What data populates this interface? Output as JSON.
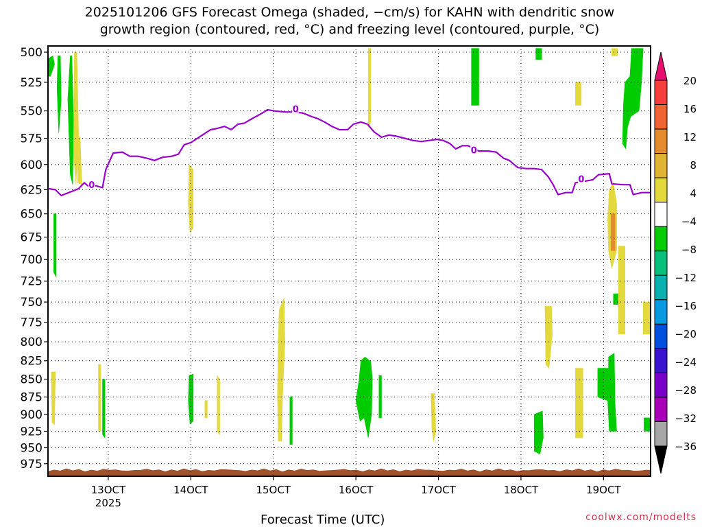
{
  "title_lines": [
    "2025101206 GFS Forecast Omega (shaded, −cm/s) for KAHN with dendritic snow",
    "growth region (contoured, red, °C) and freezing level (contoured, purple, °C)"
  ],
  "credit": "coolwx.com/modelts",
  "chart_data": {
    "type": "time-height cross section",
    "title": "2025101206 GFS Forecast Omega (shaded, −cm/s) for KAHN with dendritic snow growth region (contoured, red, °C) and freezing level (contoured, purple, °C)",
    "xlabel": "Forecast Time (UTC)",
    "ylabel": "",
    "x_range_hours": [
      -7.3,
      65.7
    ],
    "y_range_hpa": [
      495,
      995
    ],
    "y_scale": "pressure (inverted)",
    "grid": "dotted",
    "x_ticks": [
      {
        "hour": 0,
        "label": "13OCT",
        "sublabel": "2025"
      },
      {
        "hour": 10,
        "label": "14OCT"
      },
      {
        "hour": 20,
        "label": "15OCT"
      },
      {
        "hour": 30,
        "label": "16OCT"
      },
      {
        "hour": 40,
        "label": "17OCT"
      },
      {
        "hour": 50,
        "label": "18OCT"
      },
      {
        "hour": 60,
        "label": "19OCT"
      }
    ],
    "y_ticks": [
      500,
      525,
      550,
      575,
      600,
      625,
      650,
      675,
      700,
      725,
      750,
      775,
      800,
      825,
      850,
      875,
      900,
      925,
      950,
      975
    ],
    "freezing_level": {
      "name": "0",
      "color": "#9900cc",
      "label_points": [
        [
          -2,
          620
        ],
        [
          22.7,
          548
        ],
        [
          44.3,
          586
        ],
        [
          57.3,
          614
        ]
      ],
      "points": [
        [
          -7.2,
          624
        ],
        [
          -6.4,
          625
        ],
        [
          -5.7,
          631
        ],
        [
          -4.5,
          627
        ],
        [
          -3.6,
          624
        ],
        [
          -2.9,
          618
        ],
        [
          -2.2,
          623
        ],
        [
          -1.5,
          621
        ],
        [
          -0.7,
          623
        ],
        [
          -0.3,
          605
        ],
        [
          0.6,
          589
        ],
        [
          1.7,
          588
        ],
        [
          2.6,
          592
        ],
        [
          3.6,
          592
        ],
        [
          4.7,
          594
        ],
        [
          5.6,
          596
        ],
        [
          6.6,
          593
        ],
        [
          7.7,
          592
        ],
        [
          8.5,
          590
        ],
        [
          9.2,
          581
        ],
        [
          10.0,
          579
        ],
        [
          11.4,
          572
        ],
        [
          12.4,
          567
        ],
        [
          13.1,
          566
        ],
        [
          14.1,
          564
        ],
        [
          14.9,
          567
        ],
        [
          15.7,
          562
        ],
        [
          16.5,
          561
        ],
        [
          17.4,
          557
        ],
        [
          18.4,
          553
        ],
        [
          19.3,
          549
        ],
        [
          20.1,
          550
        ],
        [
          21.4,
          551
        ],
        [
          22.6,
          551
        ],
        [
          23.6,
          552
        ],
        [
          24.6,
          555
        ],
        [
          25.4,
          557
        ],
        [
          26.2,
          560
        ],
        [
          27.1,
          564
        ],
        [
          28.0,
          567
        ],
        [
          29.0,
          567
        ],
        [
          29.7,
          562
        ],
        [
          30.6,
          560
        ],
        [
          31.4,
          562
        ],
        [
          32.2,
          569
        ],
        [
          33.1,
          574
        ],
        [
          34.0,
          572
        ],
        [
          34.9,
          573
        ],
        [
          35.9,
          575
        ],
        [
          36.9,
          577
        ],
        [
          37.9,
          578
        ],
        [
          38.9,
          577
        ],
        [
          39.8,
          576
        ],
        [
          40.6,
          577
        ],
        [
          41.4,
          580
        ],
        [
          42.1,
          585
        ],
        [
          42.9,
          582
        ],
        [
          43.6,
          582
        ],
        [
          44.9,
          587
        ],
        [
          46.0,
          587
        ],
        [
          47.0,
          588
        ],
        [
          47.9,
          594
        ],
        [
          48.6,
          596
        ],
        [
          49.6,
          603
        ],
        [
          50.6,
          604
        ],
        [
          51.6,
          604
        ],
        [
          52.5,
          605
        ],
        [
          53.3,
          612
        ],
        [
          53.9,
          620
        ],
        [
          54.5,
          630
        ],
        [
          55.4,
          628
        ],
        [
          56.2,
          628
        ],
        [
          56.6,
          618
        ],
        [
          57.4,
          617
        ],
        [
          58.7,
          615
        ],
        [
          59.4,
          610
        ],
        [
          60.7,
          609
        ],
        [
          61.0,
          619
        ],
        [
          62.3,
          620
        ],
        [
          63.2,
          620
        ],
        [
          63.6,
          630
        ],
        [
          64.6,
          628
        ],
        [
          65.7,
          628
        ]
      ]
    },
    "surface": {
      "color": "#a0522d",
      "pressure_hpa": 985
    },
    "colorbar": {
      "ticks": [
        "20",
        "16",
        "12",
        "8",
        "4",
        "−4",
        "−8",
        "−12",
        "−16",
        "−20",
        "−24",
        "−28",
        "−32",
        "−36"
      ],
      "colors_top_to_bottom": [
        "#e8106e",
        "#f73e3a",
        "#f06434",
        "#e68a2e",
        "#e0b432",
        "#e4d93c",
        "#ffffff",
        "#06cc06",
        "#08c07a",
        "#08b0b0",
        "#089ae0",
        "#0050e0",
        "#3a14d0",
        "#7800c8",
        "#a800b8",
        "#a6a6a6",
        "#000000"
      ]
    },
    "omega_regions": [
      {
        "color": "#00cc00",
        "points": [
          [
            -7.2,
            505
          ],
          [
            -6.7,
            503
          ],
          [
            -6.5,
            510
          ],
          [
            -7.0,
            520
          ],
          [
            -7.2,
            520
          ]
        ]
      },
      {
        "color": "#00cc00",
        "points": [
          [
            -6.1,
            503
          ],
          [
            -5.8,
            503
          ],
          [
            -5.7,
            540
          ],
          [
            -6.0,
            570
          ],
          [
            -6.2,
            530
          ]
        ]
      },
      {
        "color": "#00cc00",
        "points": [
          [
            -4.6,
            503
          ],
          [
            -4.4,
            503
          ],
          [
            -4.2,
            560
          ],
          [
            -4.3,
            620
          ],
          [
            -4.6,
            610
          ],
          [
            -4.9,
            540
          ]
        ]
      },
      {
        "color": "#00cc00",
        "points": [
          [
            -6.6,
            650
          ],
          [
            -6.3,
            650
          ],
          [
            -6.3,
            720
          ],
          [
            -6.6,
            715
          ]
        ]
      },
      {
        "color": "#00cc00",
        "points": [
          [
            -0.7,
            850
          ],
          [
            -0.4,
            850
          ],
          [
            -0.4,
            935
          ],
          [
            -0.7,
            930
          ]
        ]
      },
      {
        "color": "#00cc00",
        "points": [
          [
            9.8,
            845
          ],
          [
            10.3,
            843
          ],
          [
            10.3,
            910
          ],
          [
            9.9,
            914
          ],
          [
            9.7,
            880
          ]
        ]
      },
      {
        "color": "#00cc00",
        "points": [
          [
            22.0,
            875
          ],
          [
            22.3,
            874
          ],
          [
            22.3,
            945
          ],
          [
            22.0,
            945
          ]
        ]
      },
      {
        "color": "#00cc00",
        "points": [
          [
            30.6,
            825
          ],
          [
            31.1,
            820
          ],
          [
            31.8,
            826
          ],
          [
            32.0,
            850
          ],
          [
            31.9,
            900
          ],
          [
            31.5,
            935
          ],
          [
            31.0,
            905
          ],
          [
            30.5,
            910
          ],
          [
            30.0,
            880
          ],
          [
            30.4,
            850
          ]
        ]
      },
      {
        "color": "#00cc00",
        "points": [
          [
            32.8,
            845
          ],
          [
            33.1,
            845
          ],
          [
            33.1,
            905
          ],
          [
            32.8,
            905
          ]
        ]
      },
      {
        "color": "#00cc00",
        "points": [
          [
            44.0,
            497
          ],
          [
            44.9,
            497
          ],
          [
            44.9,
            545
          ],
          [
            44.0,
            545
          ]
        ]
      },
      {
        "color": "#00cc00",
        "points": [
          [
            51.8,
            497
          ],
          [
            52.5,
            497
          ],
          [
            52.5,
            506
          ],
          [
            51.8,
            506
          ]
        ]
      },
      {
        "color": "#00cc00",
        "points": [
          [
            51.6,
            900
          ],
          [
            52.6,
            895
          ],
          [
            52.7,
            935
          ],
          [
            52.3,
            960
          ],
          [
            51.6,
            955
          ]
        ]
      },
      {
        "color": "#00cc00",
        "points": [
          [
            59.3,
            835
          ],
          [
            60.6,
            835
          ],
          [
            60.6,
            820
          ],
          [
            61.3,
            815
          ],
          [
            61.4,
            885
          ],
          [
            61.6,
            925
          ],
          [
            60.7,
            925
          ],
          [
            60.5,
            880
          ],
          [
            59.3,
            875
          ]
        ]
      },
      {
        "color": "#00cc00",
        "points": [
          [
            61.2,
            740
          ],
          [
            61.8,
            740
          ],
          [
            61.8,
            753
          ],
          [
            61.2,
            753
          ]
        ]
      },
      {
        "color": "#00cc00",
        "points": [
          [
            63.4,
            497
          ],
          [
            64.8,
            497
          ],
          [
            64.6,
            525
          ],
          [
            64.3,
            550
          ],
          [
            63.3,
            555
          ],
          [
            62.9,
            565
          ],
          [
            62.7,
            585
          ],
          [
            62.3,
            580
          ],
          [
            62.4,
            545
          ],
          [
            62.6,
            525
          ],
          [
            63.2,
            520
          ]
        ]
      },
      {
        "color": "#00cc00",
        "points": [
          [
            64.9,
            905
          ],
          [
            65.7,
            905
          ],
          [
            65.7,
            925
          ],
          [
            64.9,
            925
          ]
        ]
      },
      {
        "color": "#e4d93c",
        "points": [
          [
            -4.1,
            500
          ],
          [
            -3.8,
            500
          ],
          [
            -3.6,
            570
          ],
          [
            -3.9,
            620
          ],
          [
            -4.2,
            590
          ]
        ]
      },
      {
        "color": "#e4d93c",
        "points": [
          [
            -3.8,
            570
          ],
          [
            -3.4,
            575
          ],
          [
            -3.2,
            620
          ],
          [
            -3.7,
            618
          ]
        ]
      },
      {
        "color": "#e4d93c",
        "points": [
          [
            -6.9,
            840
          ],
          [
            -6.4,
            840
          ],
          [
            -6.5,
            915
          ],
          [
            -6.8,
            912
          ]
        ]
      },
      {
        "color": "#e4d93c",
        "points": [
          [
            -1.2,
            830
          ],
          [
            -0.9,
            830
          ],
          [
            -0.9,
            925
          ],
          [
            -1.2,
            925
          ]
        ]
      },
      {
        "color": "#e4d93c",
        "points": [
          [
            9.8,
            600
          ],
          [
            10.3,
            605
          ],
          [
            10.3,
            665
          ],
          [
            9.9,
            670
          ],
          [
            9.7,
            640
          ]
        ]
      },
      {
        "color": "#e4d93c",
        "points": [
          [
            11.7,
            880
          ],
          [
            12.0,
            880
          ],
          [
            12.0,
            905
          ],
          [
            11.7,
            905
          ]
        ]
      },
      {
        "color": "#e4d93c",
        "points": [
          [
            13.2,
            845
          ],
          [
            13.5,
            850
          ],
          [
            13.5,
            930
          ],
          [
            13.2,
            925
          ]
        ]
      },
      {
        "color": "#e4d93c",
        "points": [
          [
            20.7,
            760
          ],
          [
            21.3,
            745
          ],
          [
            21.4,
            800
          ],
          [
            21.1,
            880
          ],
          [
            21.0,
            940
          ],
          [
            20.6,
            940
          ],
          [
            20.5,
            870
          ],
          [
            20.6,
            800
          ]
        ]
      },
      {
        "color": "#e4d93c",
        "points": [
          [
            31.5,
            497
          ],
          [
            31.8,
            497
          ],
          [
            31.8,
            560
          ],
          [
            31.5,
            565
          ]
        ]
      },
      {
        "color": "#e4d93c",
        "points": [
          [
            39.1,
            870
          ],
          [
            39.5,
            870
          ],
          [
            39.7,
            925
          ],
          [
            39.4,
            940
          ],
          [
            39.2,
            920
          ]
        ]
      },
      {
        "color": "#e4d93c",
        "points": [
          [
            52.9,
            755
          ],
          [
            53.7,
            755
          ],
          [
            53.8,
            790
          ],
          [
            53.4,
            835
          ],
          [
            53.0,
            830
          ]
        ]
      },
      {
        "color": "#e4d93c",
        "points": [
          [
            56.6,
            525
          ],
          [
            57.3,
            525
          ],
          [
            57.3,
            545
          ],
          [
            56.6,
            545
          ]
        ]
      },
      {
        "color": "#e4d93c",
        "points": [
          [
            56.6,
            835
          ],
          [
            57.5,
            835
          ],
          [
            57.5,
            935
          ],
          [
            56.6,
            935
          ]
        ]
      },
      {
        "color": "#e4d93c",
        "points": [
          [
            60.7,
            625
          ],
          [
            61.2,
            618
          ],
          [
            61.6,
            640
          ],
          [
            61.6,
            690
          ],
          [
            61.0,
            710
          ],
          [
            60.6,
            690
          ],
          [
            60.5,
            655
          ]
        ]
      },
      {
        "color": "#e4d93c",
        "points": [
          [
            61.8,
            685
          ],
          [
            62.6,
            685
          ],
          [
            62.6,
            790
          ],
          [
            61.8,
            790
          ]
        ]
      },
      {
        "color": "#e4d93c",
        "points": [
          [
            64.8,
            750
          ],
          [
            65.7,
            750
          ],
          [
            65.7,
            790
          ],
          [
            64.8,
            790
          ]
        ]
      },
      {
        "color": "#e4d93c",
        "points": [
          [
            61.0,
            497
          ],
          [
            61.7,
            497
          ],
          [
            61.7,
            503
          ],
          [
            61.0,
            503
          ]
        ]
      },
      {
        "color": "#e68a2e",
        "points": [
          [
            60.9,
            650
          ],
          [
            61.4,
            650
          ],
          [
            61.4,
            690
          ],
          [
            60.9,
            690
          ]
        ]
      }
    ]
  }
}
